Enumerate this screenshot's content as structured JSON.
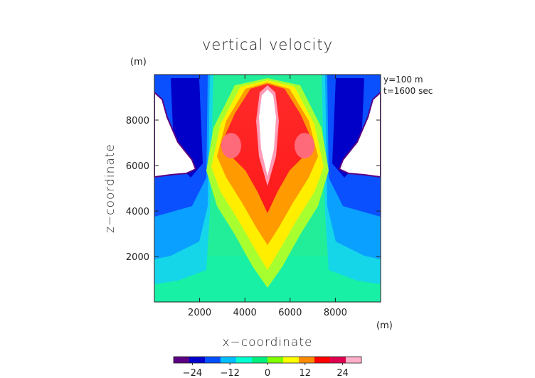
{
  "chart_data": {
    "type": "heatmap",
    "title": "vertical velocity",
    "xlabel": "x−coordinate",
    "ylabel": "z−coordinate",
    "x_unit": "(m)",
    "y_unit": "(m)",
    "annotations": [
      "y=100 m",
      "t=1600 sec"
    ],
    "xlim": [
      0,
      10000
    ],
    "ylim": [
      0,
      10000
    ],
    "xticks": [
      2000,
      4000,
      6000,
      8000
    ],
    "yticks": [
      2000,
      4000,
      6000,
      8000
    ],
    "colorbar": {
      "range": [
        -30,
        30
      ],
      "ticks": [
        -24,
        -12,
        0,
        12,
        24
      ],
      "tick_labels": [
        "−24",
        "−12",
        "0",
        "12",
        "24"
      ],
      "colors": [
        "#5a0082",
        "#0000cd",
        "#0050ff",
        "#00bfff",
        "#00ffd0",
        "#00f080",
        "#7fff00",
        "#ffff00",
        "#ff8c00",
        "#ff0000",
        "#e00050",
        "#ffb0c8"
      ]
    }
  }
}
